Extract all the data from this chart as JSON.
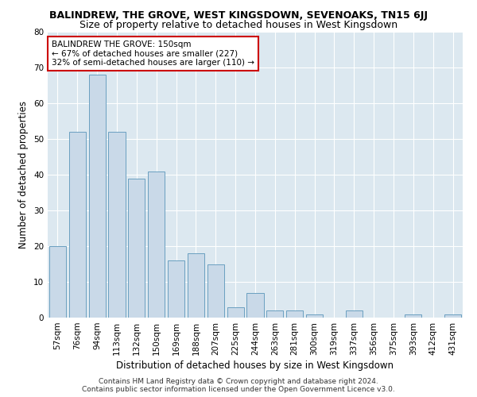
{
  "title": "BALINDREW, THE GROVE, WEST KINGSDOWN, SEVENOAKS, TN15 6JJ",
  "subtitle": "Size of property relative to detached houses in West Kingsdown",
  "xlabel": "Distribution of detached houses by size in West Kingsdown",
  "ylabel": "Number of detached properties",
  "categories": [
    "57sqm",
    "76sqm",
    "94sqm",
    "113sqm",
    "132sqm",
    "150sqm",
    "169sqm",
    "188sqm",
    "207sqm",
    "225sqm",
    "244sqm",
    "263sqm",
    "281sqm",
    "300sqm",
    "319sqm",
    "337sqm",
    "356sqm",
    "375sqm",
    "393sqm",
    "412sqm",
    "431sqm"
  ],
  "values": [
    20,
    52,
    68,
    52,
    39,
    41,
    16,
    18,
    15,
    3,
    7,
    2,
    2,
    1,
    0,
    2,
    0,
    0,
    1,
    0,
    1
  ],
  "bar_color": "#c9d9e8",
  "bar_edge_color": "#6a9fc0",
  "highlight_index": 5,
  "annotation_text": "BALINDREW THE GROVE: 150sqm\n← 67% of detached houses are smaller (227)\n32% of semi-detached houses are larger (110) →",
  "annotation_box_color": "#ffffff",
  "annotation_box_edge_color": "#cc0000",
  "ylim": [
    0,
    80
  ],
  "yticks": [
    0,
    10,
    20,
    30,
    40,
    50,
    60,
    70,
    80
  ],
  "background_color": "#dce8f0",
  "footer_line1": "Contains HM Land Registry data © Crown copyright and database right 2024.",
  "footer_line2": "Contains public sector information licensed under the Open Government Licence v3.0.",
  "title_fontsize": 9,
  "subtitle_fontsize": 9,
  "xlabel_fontsize": 8.5,
  "ylabel_fontsize": 8.5,
  "tick_fontsize": 7.5,
  "annotation_fontsize": 7.5,
  "footer_fontsize": 6.5
}
